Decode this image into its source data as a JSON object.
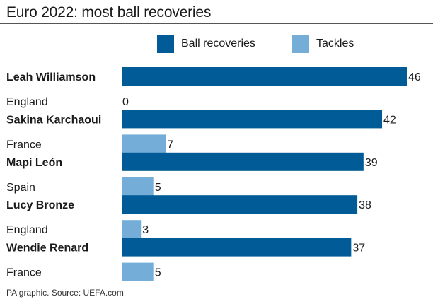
{
  "header": {
    "title": "Euro 2022: most ball recoveries"
  },
  "legend": {
    "recoveries_label": "Ball recoveries",
    "tackles_label": "Tackles"
  },
  "colors": {
    "recoveries": "#005b96",
    "tackles": "#74aed8",
    "text": "#1a1a1a"
  },
  "footer": {
    "source": "PA graphic. Source: UEFA.com"
  },
  "chart_data": {
    "type": "bar",
    "orientation": "horizontal",
    "title": "Euro 2022: most ball recoveries",
    "categories": [
      "Leah Williamson",
      "Sakina Karchaoui",
      "Mapi León",
      "Lucy Bronze",
      "Wendie Renard"
    ],
    "subcategories": [
      "England",
      "France",
      "Spain",
      "England",
      "France"
    ],
    "series": [
      {
        "name": "Ball recoveries",
        "values": [
          46,
          42,
          39,
          38,
          37
        ]
      },
      {
        "name": "Tackles",
        "values": [
          0,
          7,
          5,
          3,
          5
        ]
      }
    ],
    "xlim": [
      0,
      46
    ],
    "xlabel": "",
    "ylabel": "",
    "grid": false,
    "legend_position": "top"
  }
}
